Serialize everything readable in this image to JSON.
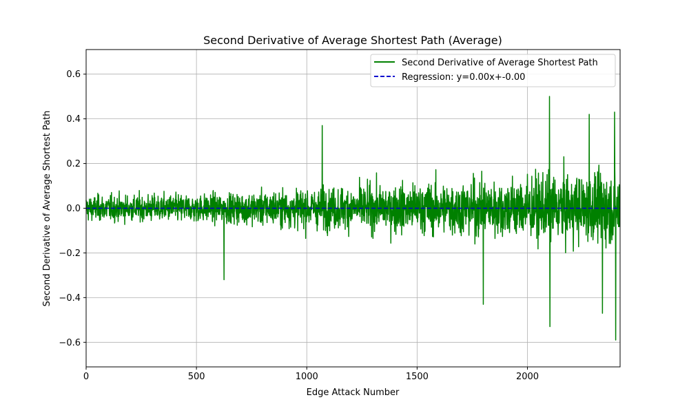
{
  "chart_data": {
    "type": "line",
    "title": "Second Derivative of Average Shortest Path (Average)",
    "xlabel": "Edge Attack Number",
    "ylabel": "Second Derivative of Average Shortest Path",
    "xlim": [
      0,
      2420
    ],
    "ylim": [
      -0.71,
      0.71
    ],
    "xticks": [
      0,
      500,
      1000,
      1500,
      2000
    ],
    "xtick_labels": [
      "0",
      "500",
      "1000",
      "1500",
      "2000"
    ],
    "yticks": [
      -0.6,
      -0.4,
      -0.2,
      0.0,
      0.2,
      0.4,
      0.6
    ],
    "ytick_labels": [
      "−0.6",
      "−0.4",
      "−0.2",
      "0.0",
      "0.2",
      "0.4",
      "0.6"
    ],
    "grid": true,
    "legend_position": "top-right",
    "series": [
      {
        "name": "Second Derivative of Average Shortest Path",
        "color": "#008000",
        "style": "solid",
        "n_points": 2420,
        "amplitude_envelope": [
          {
            "x": 0,
            "typical": 0.07,
            "peak": 0.21
          },
          {
            "x": 600,
            "typical": 0.08,
            "peak": 0.26
          },
          {
            "x": 1000,
            "typical": 0.11,
            "peak": 0.37
          },
          {
            "x": 1500,
            "typical": 0.14,
            "peak": 0.38
          },
          {
            "x": 1800,
            "typical": 0.16,
            "peak": 0.43
          },
          {
            "x": 2100,
            "typical": 0.18,
            "peak": 0.53
          },
          {
            "x": 2420,
            "typical": 0.2,
            "peak": 0.59
          }
        ],
        "extremes": [
          {
            "x": 625,
            "y": -0.32
          },
          {
            "x": 1070,
            "y": 0.37
          },
          {
            "x": 1800,
            "y": -0.43
          },
          {
            "x": 2100,
            "y": 0.5
          },
          {
            "x": 2102,
            "y": -0.53
          },
          {
            "x": 2400,
            "y": -0.59
          },
          {
            "x": 2395,
            "y": 0.43
          },
          {
            "x": 2340,
            "y": -0.47
          },
          {
            "x": 2280,
            "y": 0.42
          }
        ]
      },
      {
        "name": "Regression: y=0.00x+-0.00",
        "color": "#0000cd",
        "style": "dashed",
        "slope": 0.0,
        "intercept": 0.0
      }
    ]
  }
}
